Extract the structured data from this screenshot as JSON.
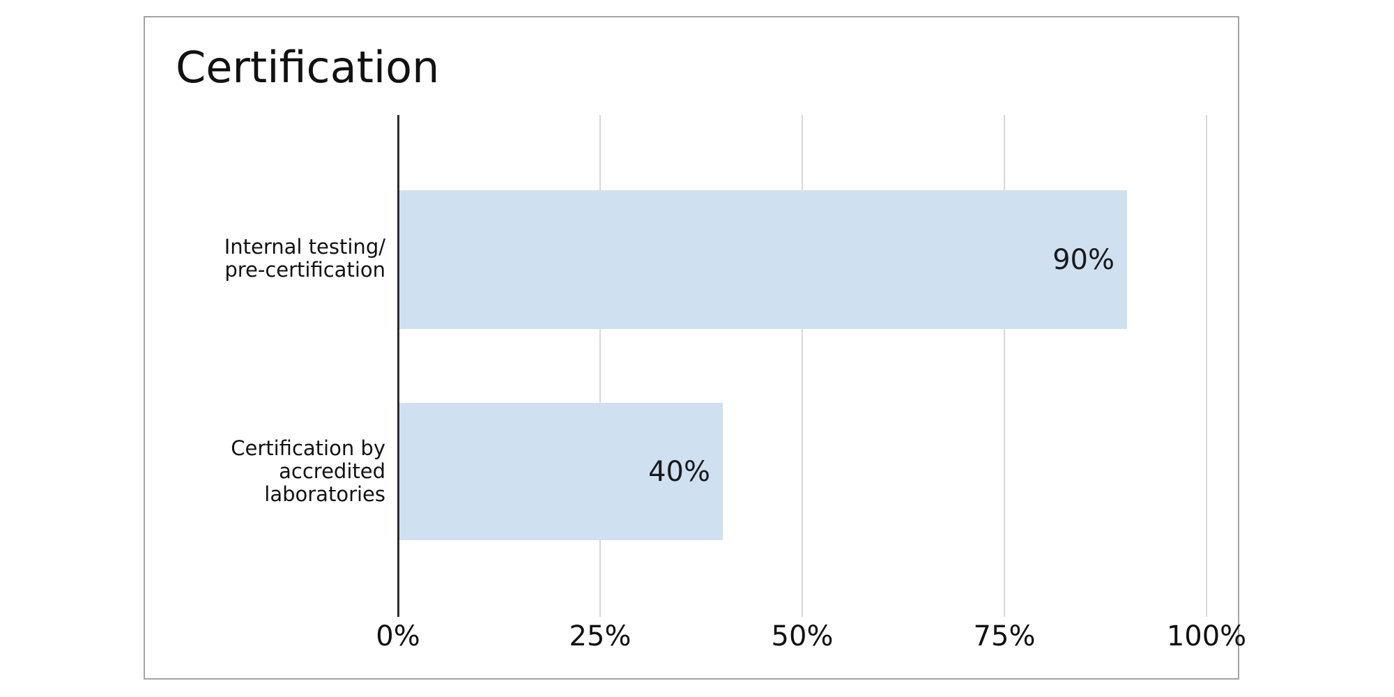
{
  "chart_data": {
    "type": "bar",
    "orientation": "horizontal",
    "title": "Certification",
    "categories": [
      "Internal testing/ pre-certification",
      "Certification by accredited laboratories"
    ],
    "values": [
      90,
      40
    ],
    "bars": [
      {
        "label_lines": [
          "Internal testing/",
          "pre-certification"
        ],
        "value": 90,
        "value_label": "90%"
      },
      {
        "label_lines": [
          "Certification by",
          "accredited",
          "laboratories"
        ],
        "value": 40,
        "value_label": "40%"
      }
    ],
    "x_ticks": [
      "0%",
      "25%",
      "50%",
      "75%",
      "100%"
    ],
    "xlim": [
      0,
      100
    ],
    "grid": "vertical gridlines at 25% intervals",
    "legend": "none",
    "colors": {
      "bar_fill": "#cfe0f1",
      "axis_line": "#2b2b2b",
      "gridline": "#d8d8d8",
      "frame_border": "#a3a3a3",
      "text": "#111111",
      "background": "#ffffff"
    }
  }
}
